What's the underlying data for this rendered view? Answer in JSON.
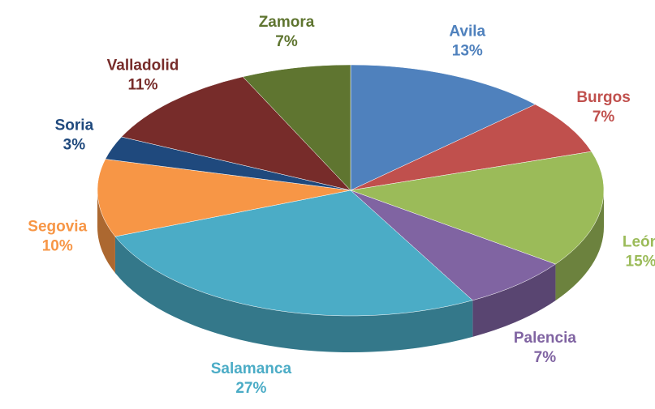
{
  "chart_data": {
    "type": "pie",
    "categories": [
      "Avila",
      "Burgos",
      "León",
      "Palencia",
      "Salamanca",
      "Segovia",
      "Soria",
      "Valladolid",
      "Zamora"
    ],
    "values": [
      13,
      7,
      15,
      7,
      27,
      10,
      3,
      11,
      7
    ],
    "value_labels": [
      "13%",
      "7%",
      "15%",
      "7%",
      "27%",
      "10%",
      "3%",
      "11%",
      "7%"
    ],
    "colors": [
      "#4f81bd",
      "#c0504d",
      "#9bbb59",
      "#8064a2",
      "#4bacc6",
      "#f79646",
      "#1f497d",
      "#772c2a",
      "#5f7530"
    ]
  }
}
